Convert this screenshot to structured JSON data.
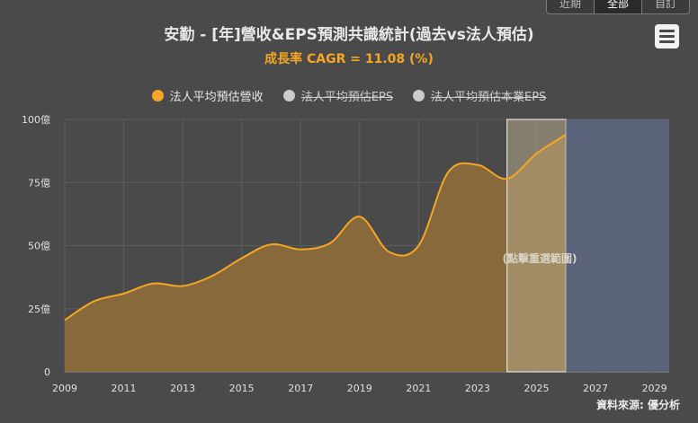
{
  "tabs": [
    {
      "label": "近期",
      "active": false
    },
    {
      "label": "全部",
      "active": true
    },
    {
      "label": "自訂",
      "active": false
    }
  ],
  "title": "安勤 - [年]營收&EPS預測共識統計(過去vs法人預估)",
  "subtitle": "成長率 CAGR = 11.08 (%)",
  "legend": [
    {
      "label": "法人平均預估營收",
      "color": "#f5a623",
      "enabled": true
    },
    {
      "label": "法人平均預估EPS",
      "color": "#cccccc",
      "enabled": false
    },
    {
      "label": "法人平均預估本業EPS",
      "color": "#cccccc",
      "enabled": false
    }
  ],
  "band_label": "(點擊重選範圍)",
  "source": "資料來源: 優分析",
  "colors": {
    "background": "#4a4a4a",
    "line": "#f5a623",
    "area": "#8a6a3a",
    "forecast_band": "#b8aa8a",
    "future_band": "#5c6680"
  },
  "chart_data": {
    "type": "area",
    "title": "安勤 - [年]營收&EPS預測共識統計(過去vs法人預估)",
    "subtitle": "成長率 CAGR = 11.08 (%)",
    "xlim": [
      2009,
      2029.5
    ],
    "ylim": [
      0,
      100
    ],
    "x_ticks": [
      2009,
      2011,
      2013,
      2015,
      2017,
      2019,
      2021,
      2023,
      2025,
      2027,
      2029
    ],
    "y_ticks": [
      {
        "value": 0,
        "label": "0"
      },
      {
        "value": 25,
        "label": "25億"
      },
      {
        "value": 50,
        "label": "50億"
      },
      {
        "value": 75,
        "label": "75億"
      },
      {
        "value": 100,
        "label": "100億"
      }
    ],
    "grid": true,
    "legend_position": "top",
    "series": [
      {
        "name": "法人平均預估營收",
        "x": [
          2009,
          2010,
          2011,
          2012,
          2013,
          2014,
          2015,
          2016,
          2017,
          2018,
          2019,
          2020,
          2021,
          2022,
          2023,
          2024,
          2025,
          2026
        ],
        "values": [
          20.5,
          28,
          31,
          35,
          34,
          38,
          45,
          50.5,
          48.5,
          51,
          61.5,
          47.5,
          50,
          79,
          82,
          76.5,
          86.5,
          94
        ]
      }
    ],
    "forecast_range": [
      2024,
      2026
    ],
    "future_range": [
      2026,
      2029.5
    ]
  }
}
